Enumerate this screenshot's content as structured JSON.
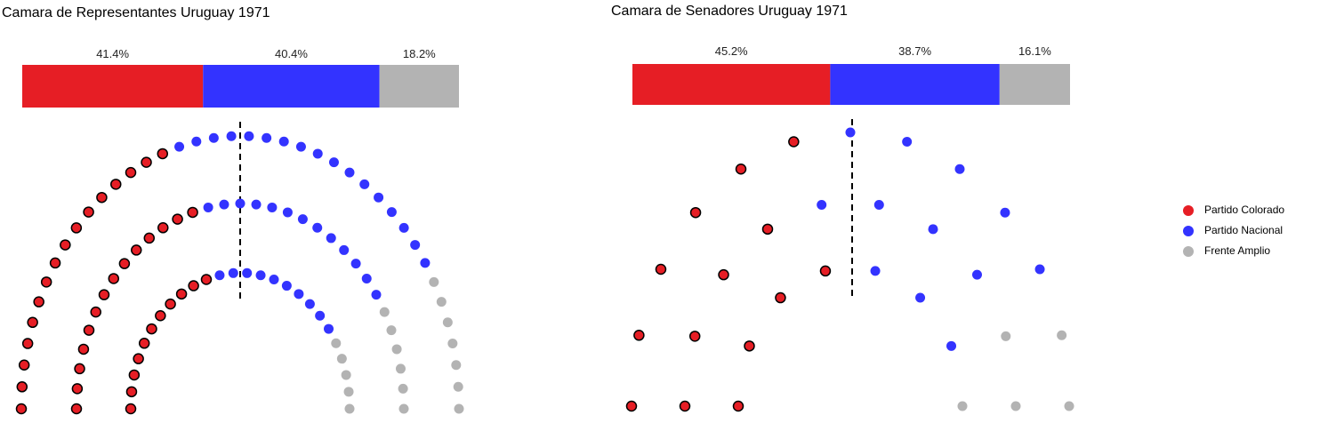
{
  "legend": {
    "items": [
      {
        "label": "Partido Colorado",
        "color": "#E61E25"
      },
      {
        "label": "Partido Nacional",
        "color": "#3333FF"
      },
      {
        "label": "Frente Amplio",
        "color": "#B3B3B3"
      }
    ]
  },
  "chart_data": [
    {
      "type": "bar",
      "title": "Camara de Representantes Uruguay 1971",
      "series": [
        {
          "name": "Partido Colorado",
          "value": 41.4,
          "label": "41.4%",
          "seats": 41,
          "color": "#E61E25"
        },
        {
          "name": "Partido Nacional",
          "value": 40.4,
          "label": "40.4%",
          "seats": 40,
          "color": "#3333FF"
        },
        {
          "name": "Frente Amplio",
          "value": 18.2,
          "label": "18.2%",
          "seats": 18,
          "color": "#B3B3B3"
        }
      ],
      "majority_line": true
    },
    {
      "type": "bar",
      "title": "Camara de Senadores Uruguay 1971",
      "series": [
        {
          "name": "Partido Colorado",
          "value": 45.2,
          "label": "45.2%",
          "seats": 14,
          "color": "#E61E25"
        },
        {
          "name": "Partido Nacional",
          "value": 38.7,
          "label": "38.7%",
          "seats": 12,
          "color": "#3333FF"
        },
        {
          "name": "Frente Amplio",
          "value": 16.1,
          "label": "16.1%",
          "seats": 5,
          "color": "#B3B3B3"
        }
      ],
      "majority_line": true
    }
  ]
}
